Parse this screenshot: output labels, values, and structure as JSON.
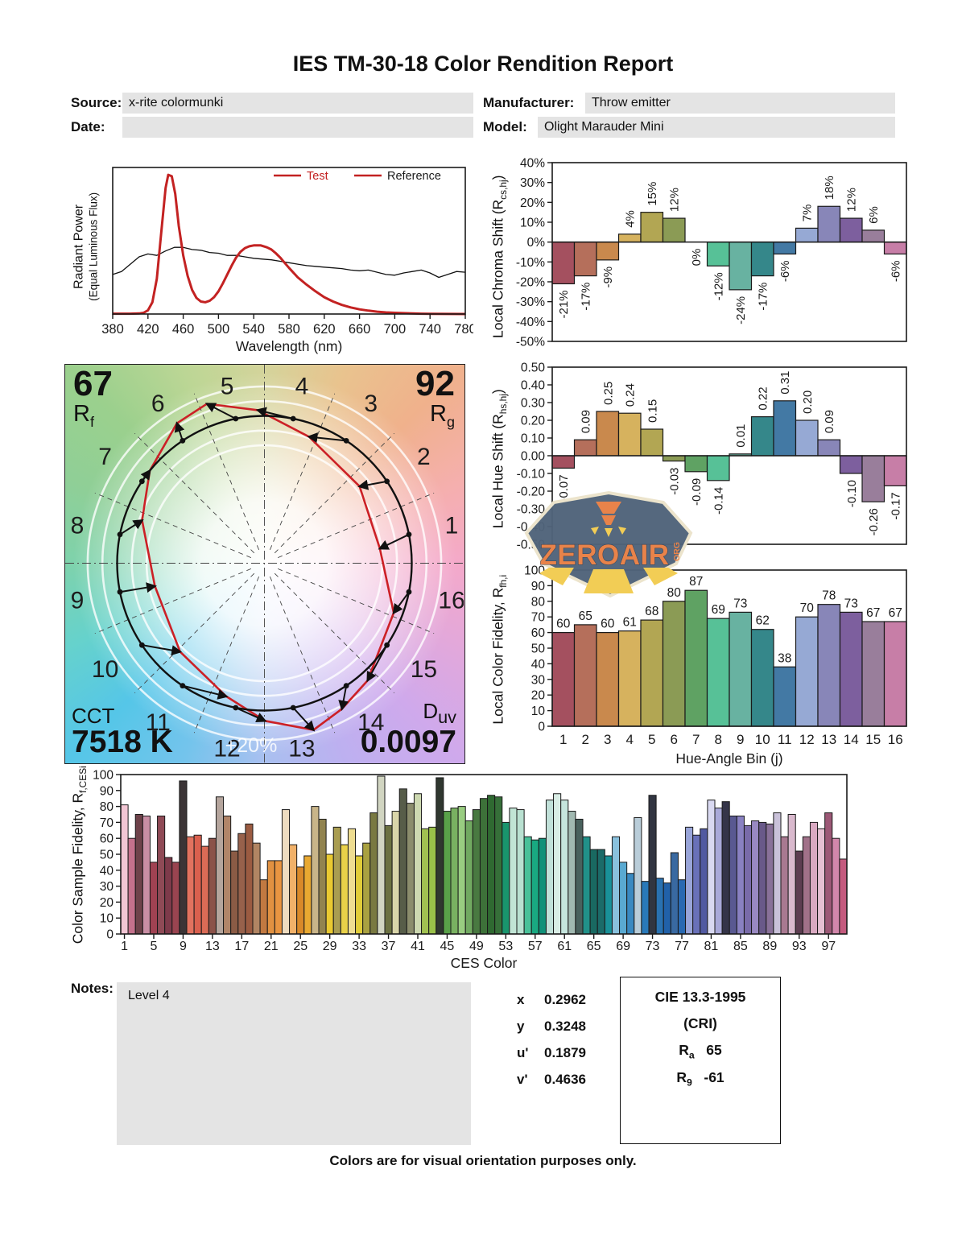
{
  "title": "IES TM-30-18 Color Rendition Report",
  "header": {
    "source_label": "Source:",
    "source": "x-rite colormunki",
    "date_label": "Date:",
    "date": "",
    "manufacturer_label": "Manufacturer:",
    "manufacturer": "Throw emitter",
    "model_label": "Model:",
    "model": "Olight Marauder Mini"
  },
  "hue_bin_colors": [
    "#a4505f",
    "#b56f5b",
    "#c9894d",
    "#d6b25e",
    "#b2a653",
    "#8b9b55",
    "#5fa263",
    "#57c197",
    "#68b2a1",
    "#35878a",
    "#4379a4",
    "#96a9d4",
    "#8886b8",
    "#7d5f9e",
    "#997e9b",
    "#c77ea7"
  ],
  "chart_data": [
    {
      "id": "spd",
      "type": "line",
      "ylabel_parts": {
        "line1": "Radiant Power",
        "line2": "(Equal Luminous Flux)"
      },
      "xlabel": "Wavelength (nm)",
      "xlim": [
        380,
        780
      ],
      "ylim": [
        0,
        1
      ],
      "xticks": [
        380,
        420,
        460,
        500,
        540,
        580,
        620,
        660,
        700,
        740,
        780
      ],
      "legend": [
        {
          "label": "Test",
          "line_color": "#c32222",
          "text_color": "#c32222"
        },
        {
          "label": "Reference",
          "line_color": "#c32222",
          "text_color": "#1a1a1a"
        }
      ],
      "series": [
        {
          "name": "Test",
          "color": "#c32222",
          "width": 3,
          "x": [
            380,
            400,
            410,
            415,
            420,
            425,
            430,
            435,
            440,
            443,
            447,
            451,
            455,
            460,
            465,
            470,
            475,
            480,
            485,
            490,
            495,
            500,
            505,
            510,
            515,
            520,
            525,
            530,
            535,
            540,
            548,
            555,
            560,
            565,
            570,
            575,
            580,
            590,
            600,
            610,
            620,
            630,
            640,
            650,
            660,
            670,
            680,
            690,
            700,
            710,
            720,
            730,
            740,
            780
          ],
          "y": [
            0.002,
            0.002,
            0.004,
            0.008,
            0.025,
            0.08,
            0.24,
            0.55,
            0.86,
            0.95,
            0.94,
            0.82,
            0.6,
            0.4,
            0.26,
            0.165,
            0.11,
            0.085,
            0.08,
            0.09,
            0.115,
            0.155,
            0.21,
            0.27,
            0.33,
            0.385,
            0.425,
            0.45,
            0.462,
            0.468,
            0.468,
            0.455,
            0.44,
            0.415,
            0.385,
            0.35,
            0.315,
            0.25,
            0.2,
            0.155,
            0.115,
            0.085,
            0.062,
            0.045,
            0.032,
            0.023,
            0.016,
            0.011,
            0.008,
            0.006,
            0.004,
            0.002,
            0.001,
            0.0
          ]
        },
        {
          "name": "Reference",
          "color": "#111111",
          "width": 1.3,
          "x": [
            380,
            390,
            400,
            410,
            420,
            430,
            440,
            450,
            460,
            470,
            480,
            490,
            500,
            510,
            520,
            530,
            540,
            550,
            560,
            570,
            580,
            590,
            600,
            610,
            620,
            630,
            640,
            650,
            660,
            670,
            680,
            690,
            700,
            710,
            720,
            730,
            740,
            750,
            760,
            770,
            780
          ],
          "y": [
            0.27,
            0.29,
            0.34,
            0.39,
            0.41,
            0.4,
            0.43,
            0.455,
            0.455,
            0.44,
            0.435,
            0.42,
            0.415,
            0.4,
            0.4,
            0.39,
            0.38,
            0.375,
            0.37,
            0.36,
            0.35,
            0.34,
            0.33,
            0.325,
            0.32,
            0.315,
            0.31,
            0.3,
            0.295,
            0.3,
            0.285,
            0.27,
            0.265,
            0.28,
            0.29,
            0.3,
            0.28,
            0.25,
            0.27,
            0.29,
            0.285
          ]
        }
      ]
    },
    {
      "id": "chroma_shift",
      "type": "bar",
      "ylabel_parts": {
        "pre": "Local Chroma Shift (R",
        "sub": "cs,hj",
        "post": ")"
      },
      "ylim": [
        -50,
        40
      ],
      "ytick_step": 10,
      "ytick_suffix": "%",
      "values": [
        -21,
        -17,
        -9,
        4,
        15,
        12,
        0,
        -12,
        -24,
        -17,
        -6,
        7,
        18,
        12,
        6,
        -6
      ],
      "value_labels": [
        "-21%",
        "-17%",
        "-9%",
        "4%",
        "15%",
        "12%",
        "0%",
        "-12%",
        "-24%",
        "-17%",
        "-6%",
        "7%",
        "18%",
        "12%",
        "6%",
        "-6%"
      ],
      "label_style": "rotated"
    },
    {
      "id": "hue_shift",
      "type": "bar",
      "ylabel_parts": {
        "pre": "Local Hue Shift (R",
        "sub": "hs,hj",
        "post": ")"
      },
      "ylim": [
        -0.5,
        0.5
      ],
      "ytick_step": 0.1,
      "ytick_decimals": 2,
      "values": [
        -0.07,
        0.09,
        0.25,
        0.24,
        0.15,
        -0.03,
        -0.09,
        -0.14,
        0.01,
        0.22,
        0.31,
        0.2,
        0.09,
        -0.1,
        -0.26,
        -0.17
      ],
      "value_labels": [
        "-0.07",
        "0.09",
        "0.25",
        "0.24",
        "0.15",
        "-0.03",
        "-0.09",
        "-0.14",
        "0.01",
        "0.22",
        "0.31",
        "0.20",
        "0.09",
        "-0.10",
        "-0.26",
        "-0.17"
      ],
      "label_style": "rotated"
    },
    {
      "id": "local_fidelity",
      "type": "bar",
      "ylabel_parts": {
        "pre": "Local Color Fidelity, R",
        "sub": "fh,i",
        "post": ""
      },
      "xlabel": "Hue-Angle Bin (j)",
      "ylim": [
        0,
        100
      ],
      "ytick_step": 10,
      "categories": [
        "1",
        "2",
        "3",
        "4",
        "5",
        "6",
        "7",
        "8",
        "9",
        "10",
        "11",
        "12",
        "13",
        "14",
        "15",
        "16"
      ],
      "values": [
        60,
        65,
        60,
        61,
        68,
        80,
        87,
        69,
        73,
        62,
        38,
        70,
        78,
        73,
        67,
        67
      ],
      "label_style": "horizontal"
    },
    {
      "id": "ces_fidelity",
      "type": "bar",
      "ylabel_parts": {
        "pre": "Color Sample Fidelity, R",
        "sub": "f,CESi",
        "post": ""
      },
      "xlabel": "CES Color",
      "ylim": [
        0,
        100
      ],
      "ytick_step": 10,
      "xtick_every": 4,
      "xtick_start": 1,
      "values": [
        81,
        60,
        75,
        74,
        45,
        74,
        48,
        45,
        96,
        61,
        62,
        55,
        60,
        86,
        74,
        52,
        63,
        69,
        57,
        34,
        46,
        46,
        78,
        56,
        42,
        49,
        80,
        72,
        50,
        67,
        56,
        66,
        49,
        57,
        76,
        99,
        68,
        77,
        91,
        82,
        88,
        66,
        67,
        98,
        77,
        79,
        80,
        71,
        78,
        85,
        87,
        86,
        70,
        79,
        78,
        61,
        59,
        60,
        84,
        88,
        84,
        77,
        72,
        61,
        53,
        53,
        49,
        61,
        45,
        38,
        73,
        33,
        87,
        35,
        32,
        51,
        34,
        67,
        62,
        66,
        84,
        79,
        83,
        74,
        74,
        68,
        71,
        70,
        69,
        76,
        61,
        75,
        52,
        61,
        70,
        66,
        76,
        60,
        47
      ],
      "colors": [
        "#f2c6d4",
        "#c4718c",
        "#6e424a",
        "#c98ea4",
        "#a04252",
        "#8f4a56",
        "#7e3a4a",
        "#9a4450",
        "#3b3436",
        "#e2725f",
        "#da604e",
        "#da6b56",
        "#8b5249",
        "#b5a59d",
        "#b18569",
        "#8b5b45",
        "#97614b",
        "#9b5b41",
        "#b18563",
        "#c17941",
        "#e19141",
        "#e99541",
        "#eedcc0",
        "#f1b169",
        "#d98929",
        "#e9a931",
        "#c9b589",
        "#91834f",
        "#e9c931",
        "#a99d51",
        "#e9d149",
        "#eedd91",
        "#e1cd39",
        "#a9a141",
        "#797941",
        "#d1d5c1",
        "#6b7141",
        "#d9d5a9",
        "#575d49",
        "#8b8d6d",
        "#cdd9b1",
        "#a1c151",
        "#99c149",
        "#2f372f",
        "#59a149",
        "#79b161",
        "#99cd81",
        "#71a961",
        "#497941",
        "#3d7139",
        "#2f6931",
        "#366f39",
        "#19956d",
        "#c1e5d5",
        "#b9e1d1",
        "#49c199",
        "#19a981",
        "#119179",
        "#c1e1d9",
        "#d9ede5",
        "#c5e5dd",
        "#a1b9b1",
        "#49615d",
        "#219189",
        "#196961",
        "#1b6b69",
        "#199199",
        "#89c1dd",
        "#59a9d1",
        "#3989c1",
        "#b9cdd9",
        "#2979b9",
        "#313541",
        "#2971b1",
        "#2161a9",
        "#3969a1",
        "#2969b1",
        "#99a5d9",
        "#6971b9",
        "#5159a1",
        "#d9d9f1",
        "#a9a9d9",
        "#353549",
        "#595991",
        "#8981c1",
        "#796ba9",
        "#9989c1",
        "#695989",
        "#897199",
        "#c9c1d9",
        "#a97991",
        "#d9b9cd",
        "#5d3d51",
        "#a17189",
        "#d9a9c1",
        "#e5c0d2",
        "#9c5876",
        "#d287ab",
        "#c45a7e"
      ]
    },
    {
      "id": "color_vector",
      "type": "polar_vector",
      "rf": {
        "value": "67",
        "label_main": "R",
        "label_sub": "f"
      },
      "rg": {
        "value": "92",
        "label_main": "R",
        "label_sub": "g"
      },
      "cct": {
        "label": "CCT",
        "value": "7518 K"
      },
      "duv": {
        "label_main": "D",
        "label_sub": "uv",
        "value": "0.0097"
      },
      "ring_label": "+20%",
      "bin_labels": [
        "1",
        "2",
        "3",
        "4",
        "5",
        "6",
        "7",
        "8",
        "9",
        "10",
        "11",
        "12",
        "13",
        "14",
        "15",
        "16"
      ],
      "chroma_shift_pct": [
        -21,
        -17,
        -9,
        4,
        15,
        12,
        0,
        -12,
        -24,
        -17,
        -6,
        7,
        18,
        12,
        6,
        -6
      ],
      "hue_shift": [
        -0.07,
        0.09,
        0.25,
        0.24,
        0.15,
        -0.03,
        -0.09,
        -0.14,
        0.01,
        0.22,
        0.31,
        0.2,
        0.09,
        -0.1,
        -0.26,
        -0.17
      ],
      "test_color": "#cc2026",
      "reference_color": "#111111"
    }
  ],
  "chromaticity": {
    "x_label": "x",
    "x": "0.2962",
    "y_label": "y",
    "y": "0.3248",
    "u_label": "u'",
    "u": "0.1879",
    "v_label": "v'",
    "v": "0.4636"
  },
  "cri_box": {
    "title": "CIE 13.3-1995",
    "subtitle": "(CRI)",
    "ra_label_main": "R",
    "ra_label_sub": "a",
    "ra_value": "65",
    "r9_label_main": "R",
    "r9_label_sub": "9",
    "r9_value": "-61"
  },
  "notes": {
    "label": "Notes:",
    "text": "Level 4"
  },
  "footer": "Colors are for visual orientation purposes only.",
  "watermark": {
    "text": "ZEROAIR",
    "suffix": "ORG"
  }
}
